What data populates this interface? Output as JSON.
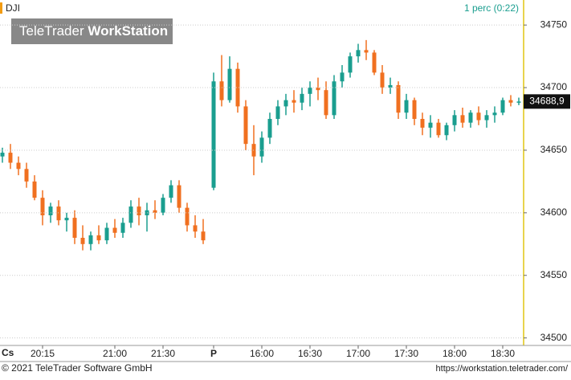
{
  "chart_data": {
    "type": "candlestick",
    "symbol": "DJI",
    "interval": "1 perc (0:22)",
    "watermark_light": "TeleTrader",
    "watermark_bold": "WorkStation",
    "corner_label": "Cs",
    "copyright": "© 2021 TeleTrader Software GmbH",
    "url": "https://workstation.teletrader.com/",
    "last_label": "34688,9",
    "up_color": "#1a9e8f",
    "down_color": "#f07020",
    "ylim": [
      34494,
      34770
    ],
    "yticks": [
      34500,
      34550,
      34600,
      34650,
      34700,
      34750
    ],
    "grid": true,
    "categories": [
      null,
      null,
      null,
      null,
      null,
      "20:15",
      null,
      null,
      null,
      null,
      null,
      null,
      null,
      null,
      "21:00",
      null,
      null,
      null,
      null,
      null,
      "21:30",
      null,
      null,
      null,
      null,
      null,
      "P",
      null,
      null,
      null,
      null,
      null,
      "16:00",
      null,
      null,
      null,
      null,
      null,
      "16:30",
      null,
      null,
      null,
      null,
      null,
      "17:00",
      null,
      null,
      null,
      null,
      null,
      "17:30",
      null,
      null,
      null,
      null,
      null,
      "18:00",
      null,
      null,
      null,
      null,
      null,
      "18:30",
      null,
      null
    ],
    "open": [
      34645,
      34648,
      34640,
      34635,
      34625,
      34612,
      34598,
      34605,
      34594,
      34596,
      34580,
      34575,
      34582,
      34578,
      34588,
      34584,
      34592,
      34605,
      34598,
      34602,
      34600,
      34612,
      34622,
      34604,
      34590,
      34585,
      34620,
      34705,
      34690,
      34715,
      34685,
      34655,
      34645,
      34660,
      34675,
      34685,
      34690,
      34688,
      34695,
      34700,
      34698,
      34678,
      34705,
      34712,
      34725,
      34730,
      34728,
      34712,
      34700,
      34702,
      34680,
      34690,
      34675,
      34668,
      34672,
      34662,
      34670,
      34678,
      34672,
      34680,
      34674,
      34678,
      34680,
      34690,
      34688
    ],
    "high": [
      34652,
      34655,
      34645,
      34640,
      34630,
      34618,
      34608,
      34610,
      34600,
      34602,
      34590,
      34585,
      34590,
      34592,
      34595,
      34596,
      34610,
      34612,
      34608,
      34610,
      34615,
      34626,
      34626,
      34608,
      34598,
      34595,
      34712,
      34726,
      34725,
      34720,
      34690,
      34670,
      34665,
      34680,
      34690,
      34695,
      34698,
      34700,
      34705,
      34708,
      34705,
      34710,
      34718,
      34728,
      34735,
      34738,
      34730,
      34718,
      34708,
      34705,
      34695,
      34692,
      34680,
      34678,
      34675,
      34672,
      34682,
      34684,
      34682,
      34685,
      34682,
      34685,
      34692,
      34694,
      34692
    ],
    "low": [
      34640,
      34635,
      34630,
      34620,
      34610,
      34590,
      34592,
      34590,
      34585,
      34575,
      34570,
      34570,
      34575,
      34575,
      34580,
      34580,
      34588,
      34590,
      34585,
      34595,
      34598,
      34608,
      34600,
      34585,
      34580,
      34575,
      34618,
      34685,
      34688,
      34680,
      34650,
      34630,
      34640,
      34655,
      34670,
      34678,
      34680,
      34682,
      34685,
      34690,
      34675,
      34675,
      34700,
      34708,
      34720,
      34722,
      34710,
      34695,
      34695,
      34675,
      34675,
      34670,
      34662,
      34660,
      34660,
      34658,
      34665,
      34668,
      34668,
      34670,
      34668,
      34672,
      34678,
      34685,
      34686
    ],
    "close": [
      34648,
      34640,
      34635,
      34625,
      34612,
      34598,
      34605,
      34594,
      34596,
      34580,
      34575,
      34582,
      34578,
      34588,
      34584,
      34592,
      34605,
      34598,
      34602,
      34600,
      34612,
      34622,
      34604,
      34590,
      34585,
      34578,
      34705,
      34690,
      34715,
      34685,
      34655,
      34645,
      34660,
      34675,
      34685,
      34690,
      34688,
      34695,
      34700,
      34698,
      34678,
      34705,
      34712,
      34725,
      34730,
      34728,
      34712,
      34700,
      34702,
      34680,
      34690,
      34675,
      34668,
      34672,
      34662,
      34670,
      34678,
      34672,
      34680,
      34674,
      34678,
      34680,
      34690,
      34688,
      34688.9
    ]
  }
}
